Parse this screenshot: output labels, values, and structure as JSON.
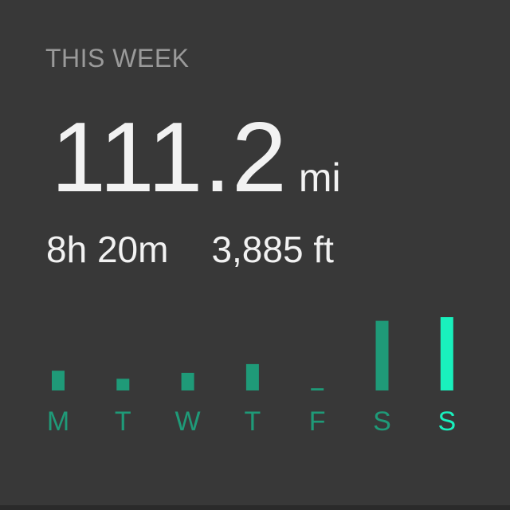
{
  "header": {
    "period_label": "THIS WEEK"
  },
  "summary": {
    "distance_value": "111.2",
    "distance_unit": "mi",
    "duration": "8h 20m",
    "elevation": "3,885 ft"
  },
  "colors": {
    "background": "#383838",
    "bar": "#1f9a78",
    "bar_highlight": "#19f0bd",
    "label": "#1f9a78",
    "label_highlight": "#19f0bd",
    "muted_text": "#9a9a9a"
  },
  "chart_data": {
    "type": "bar",
    "categories": [
      "M",
      "T",
      "W",
      "T",
      "F",
      "S",
      "S"
    ],
    "values": [
      0.27,
      0.16,
      0.24,
      0.36,
      0.03,
      0.95,
      1.0
    ],
    "highlight_index": 6,
    "ylim": [
      0,
      1
    ],
    "grid": false
  }
}
